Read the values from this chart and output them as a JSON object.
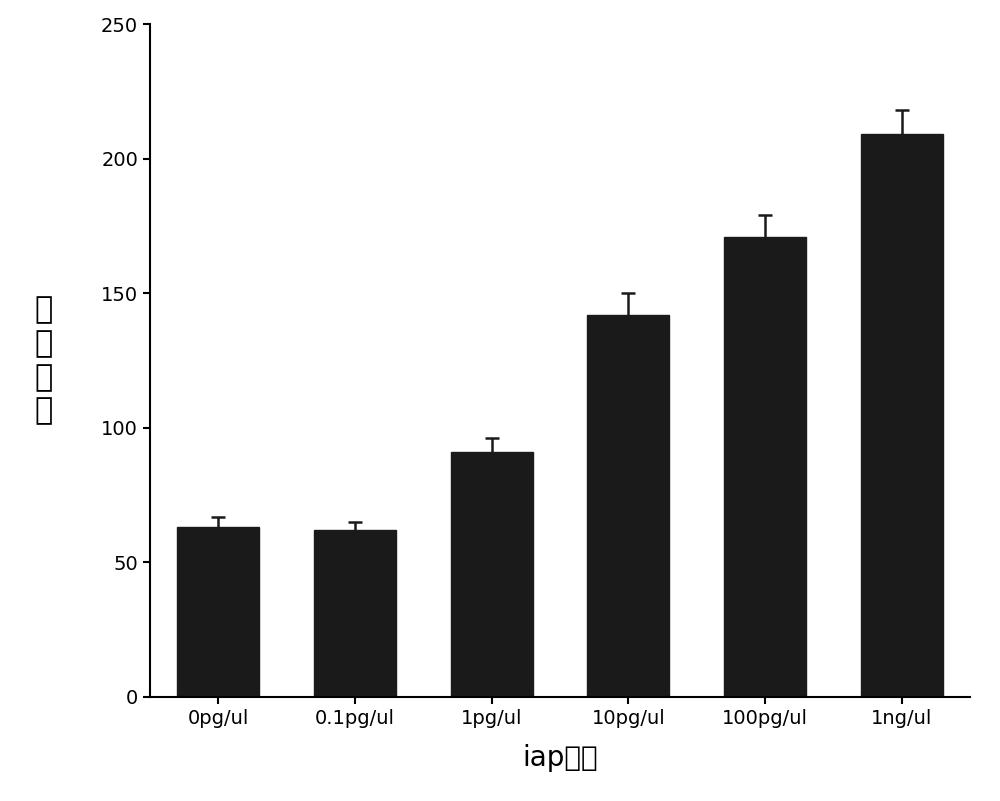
{
  "categories": [
    "0pg/ul",
    "0.1pg/ul",
    "1pg/ul",
    "10pg/ul",
    "100pg/ul",
    "1ng/ul"
  ],
  "values": [
    63,
    62,
    91,
    142,
    171,
    209
  ],
  "errors": [
    4,
    3,
    5,
    8,
    8,
    9
  ],
  "bar_color": "#1a1a1a",
  "bar_width": 0.6,
  "xlabel": "iap基因",
  "ylabel_chars": [
    "荧",
    "光",
    "强",
    "度"
  ],
  "ylim": [
    0,
    250
  ],
  "yticks": [
    0,
    50,
    100,
    150,
    200,
    250
  ],
  "xlabel_fontsize": 20,
  "ylabel_fontsize": 22,
  "tick_fontsize": 14,
  "background_color": "#ffffff",
  "figsize": [
    10.0,
    8.01
  ],
  "dpi": 100
}
